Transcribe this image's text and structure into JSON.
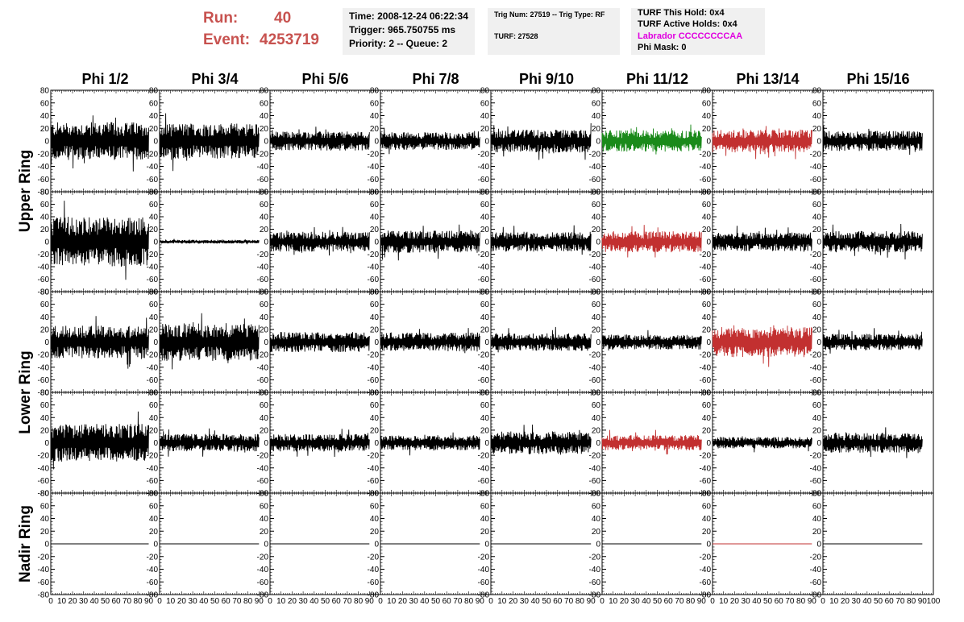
{
  "run": {
    "run_label": "Run:",
    "run_value": "40",
    "event_label": "Event:",
    "event_value": "4253719"
  },
  "info": {
    "time": "Time: 2008-12-24 06:22:34",
    "trigger": "Trigger: 965.750755 ms",
    "priority": "Priority: 2 -- Queue: 2"
  },
  "trig": {
    "trig_num": "Trig Num: 27519 -- Trig Type: RF",
    "turf": "TURF: 27528"
  },
  "turf": {
    "this_hold": "TURF This Hold: 0x4",
    "active_holds": "TURF Active Holds: 0x4",
    "labrador": "Labrador CCCCCCCCAA",
    "phi_mask": "Phi Mask: 0"
  },
  "colors": {
    "normal": "#000000",
    "green": "#1a8a1a",
    "red": "#c23030",
    "header": "#c7524f",
    "magenta": "#e000e0"
  },
  "chart_data": {
    "type": "line",
    "columns": [
      "Phi 1/2",
      "Phi 3/4",
      "Phi 5/6",
      "Phi 7/8",
      "Phi 9/10",
      "Phi 11/12",
      "Phi 13/14",
      "Phi 15/16"
    ],
    "row_groups": [
      {
        "label": "Upper Ring",
        "rows": [
          0,
          1
        ]
      },
      {
        "label": "Lower Ring",
        "rows": [
          2,
          3
        ]
      },
      {
        "label": "Nadir Ring",
        "rows": [
          4
        ]
      }
    ],
    "xlim": [
      0,
      100
    ],
    "ylim": [
      -80,
      80
    ],
    "x_ticks": [
      0,
      10,
      20,
      30,
      40,
      50,
      60,
      70,
      80,
      90,
      100
    ],
    "y_ticks": [
      80,
      60,
      40,
      20,
      0,
      -20,
      -40,
      -60,
      -80
    ],
    "x_extent": [
      0,
      90
    ],
    "grid": false,
    "panels": [
      [
        {
          "amp": 30,
          "color": "normal"
        },
        {
          "amp": 28,
          "color": "normal"
        },
        {
          "amp": 15,
          "color": "normal"
        },
        {
          "amp": 14,
          "color": "normal"
        },
        {
          "amp": 18,
          "color": "normal"
        },
        {
          "amp": 17,
          "color": "green"
        },
        {
          "amp": 18,
          "color": "red"
        },
        {
          "amp": 16,
          "color": "normal"
        }
      ],
      [
        {
          "amp": 40,
          "color": "normal"
        },
        {
          "amp": 3,
          "color": "normal"
        },
        {
          "amp": 16,
          "color": "normal"
        },
        {
          "amp": 18,
          "color": "normal"
        },
        {
          "amp": 16,
          "color": "normal"
        },
        {
          "amp": 17,
          "color": "red"
        },
        {
          "amp": 15,
          "color": "normal"
        },
        {
          "amp": 17,
          "color": "normal"
        }
      ],
      [
        {
          "amp": 26,
          "color": "normal"
        },
        {
          "amp": 30,
          "color": "normal"
        },
        {
          "amp": 16,
          "color": "normal"
        },
        {
          "amp": 15,
          "color": "normal"
        },
        {
          "amp": 14,
          "color": "normal"
        },
        {
          "amp": 12,
          "color": "normal"
        },
        {
          "amp": 24,
          "color": "red"
        },
        {
          "amp": 13,
          "color": "normal"
        }
      ],
      [
        {
          "amp": 30,
          "color": "normal"
        },
        {
          "amp": 14,
          "color": "normal"
        },
        {
          "amp": 14,
          "color": "normal"
        },
        {
          "amp": 12,
          "color": "normal"
        },
        {
          "amp": 18,
          "color": "normal"
        },
        {
          "amp": 12,
          "color": "red"
        },
        {
          "amp": 9,
          "color": "normal"
        },
        {
          "amp": 16,
          "color": "normal"
        }
      ],
      [
        {
          "amp": 0,
          "color": "normal"
        },
        {
          "amp": 0,
          "color": "normal"
        },
        {
          "amp": 0,
          "color": "normal"
        },
        {
          "amp": 0,
          "color": "normal"
        },
        {
          "amp": 0,
          "color": "normal"
        },
        {
          "amp": 0,
          "color": "normal"
        },
        {
          "amp": 0,
          "color": "red"
        },
        {
          "amp": 0,
          "color": "normal"
        }
      ]
    ]
  }
}
